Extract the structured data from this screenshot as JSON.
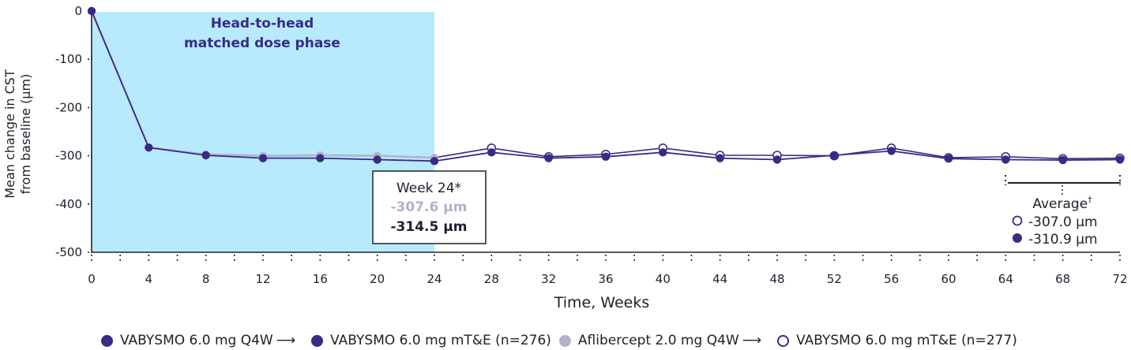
{
  "colors": {
    "phase_fill": "#b7eafc",
    "primary": "#3a2a86",
    "secondary": "#b3b2c9",
    "axis": "#222222",
    "text": "#1f1f2e"
  },
  "chart_data": {
    "type": "line",
    "title": "",
    "xlabel": "Time, Weeks",
    "ylabel": [
      "Mean change in CST",
      "from baseline (µm)"
    ],
    "xlim": [
      0,
      72
    ],
    "ylim": [
      -500,
      0
    ],
    "x_ticks": [
      0,
      4,
      8,
      12,
      16,
      20,
      24,
      28,
      32,
      36,
      40,
      44,
      48,
      52,
      56,
      60,
      64,
      68,
      72
    ],
    "y_ticks": [
      0,
      -100,
      -200,
      -300,
      -400,
      -500
    ],
    "y_tick_labels": [
      "0",
      "-100",
      "-200",
      "-300",
      "-400",
      "-500"
    ],
    "shaded_region": {
      "x_range": [
        0,
        24
      ],
      "label": [
        "Head-to-head",
        "matched dose phase"
      ]
    },
    "series": [
      {
        "name": "Aflibercept 2.0 mg Q4W → VABYSMO 6.0 mg mT&E (n=277)",
        "marker": "light-filled-then-open",
        "x": [
          0,
          4,
          8,
          12,
          16,
          20,
          24,
          28,
          32,
          36,
          40,
          44,
          48,
          52,
          56,
          60,
          64,
          68,
          72
        ],
        "values": [
          0,
          -283,
          -297,
          -300,
          -299,
          -300,
          -304,
          -284,
          -302,
          -297,
          -284,
          -299,
          -299,
          -300,
          -284,
          -304,
          -302,
          -306,
          -305
        ]
      },
      {
        "name": "VABYSMO 6.0 mg Q4W → VABYSMO 6.0 mg mT&E (n=276)",
        "marker": "filled",
        "x": [
          0,
          4,
          8,
          12,
          16,
          20,
          24,
          28,
          32,
          36,
          40,
          44,
          48,
          52,
          56,
          60,
          64,
          68,
          72
        ],
        "values": [
          0,
          -283,
          -299,
          -305,
          -305,
          -308,
          -311,
          -293,
          -305,
          -302,
          -293,
          -305,
          -308,
          -299,
          -290,
          -306,
          -308,
          -309,
          -308
        ]
      }
    ],
    "annotations": {
      "week24": {
        "title": "Week 24*",
        "aflibercept": "-307.6 µm",
        "vabysmo": "-314.5 µm"
      },
      "average": {
        "title": "Average",
        "title_mark": "†",
        "open_value": "-307.0 µm",
        "filled_value": "-310.9 µm"
      }
    },
    "legend": {
      "position": "bottom",
      "items": [
        {
          "text": "VABYSMO 6.0 mg Q4W",
          "marker": "filled-dark"
        },
        {
          "text": "VABYSMO 6.0 mg mT&E (n=276)",
          "marker": "filled-dark"
        },
        {
          "text": "Aflibercept 2.0 mg Q4W",
          "marker": "filled-light"
        },
        {
          "text": "VABYSMO 6.0 mg mT&E (n=277)",
          "marker": "open-dark"
        }
      ],
      "arrow": "⟶"
    }
  }
}
